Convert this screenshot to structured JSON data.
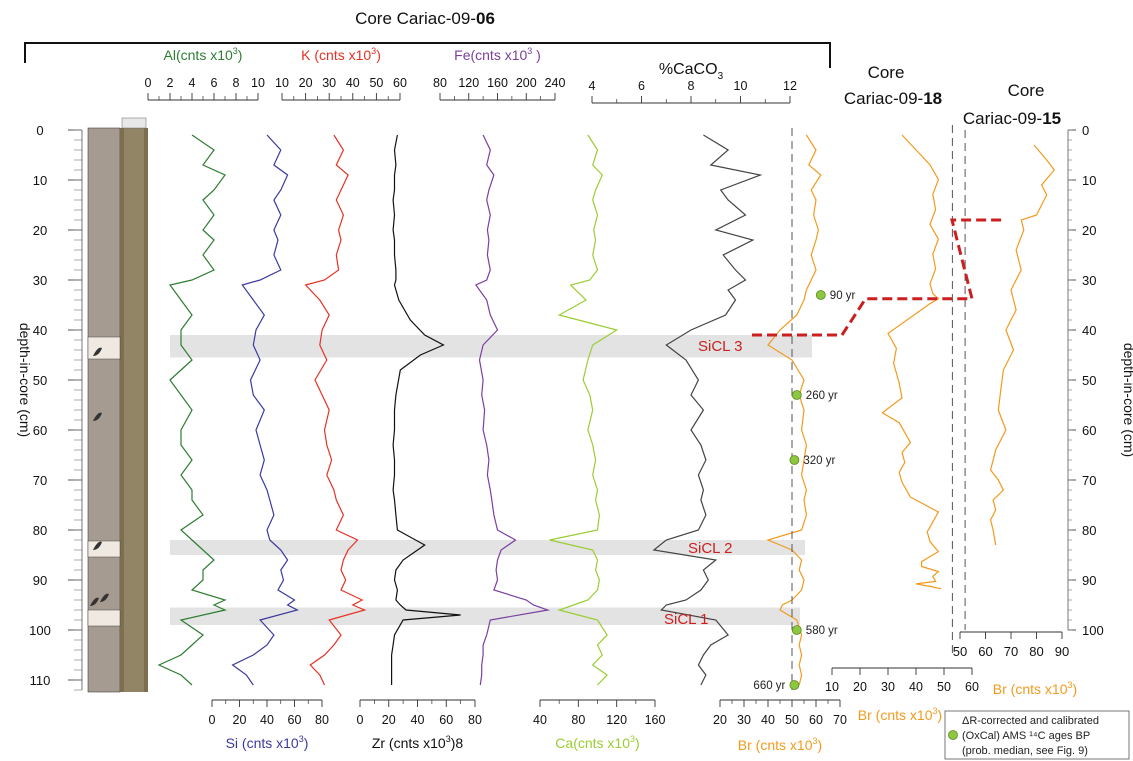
{
  "figure": {
    "title_prefix": "Core Cariac-09-",
    "title_num": "06",
    "core18_line1": "Core",
    "core18_prefix": "Cariac-09-",
    "core18_num": "18",
    "core15_line1": "Core",
    "core15_prefix": "Cariac-09-",
    "core15_num": "15",
    "depth_label": "depth-in-core (cm)",
    "legend_lines": [
      "ΔR-corrected and calibrated",
      "(OxCal) AMS ¹⁴C ages BP",
      "(prob. median, see Fig. 9)"
    ],
    "colors": {
      "al": "#2e7d32",
      "si": "#3a3a9e",
      "k": "#e53224",
      "zr": "#111111",
      "fe": "#7b3fa0",
      "ca": "#9acd32",
      "caco3": "#444444",
      "br": "#f39a1e",
      "event": "#cc1f1f",
      "band": "#d9d9d9",
      "date_marker": "#8dc63f"
    }
  },
  "chart_data": [
    {
      "type": "line",
      "core": "Cariac-09-06",
      "y": {
        "label": "depth-in-core (cm)",
        "range": [
          0,
          110
        ],
        "ticks": [
          0,
          10,
          20,
          30,
          40,
          50,
          60,
          70,
          80,
          90,
          100,
          110
        ]
      },
      "panels": [
        {
          "id": "al",
          "axis": "top",
          "label_main": "Al(cnts x10",
          "label_sup": "3",
          "label_end": ")",
          "ticks": [
            "0",
            "2",
            "4",
            "6",
            "8",
            "10"
          ],
          "range": [
            0,
            10
          ],
          "x": [
            4,
            6,
            5,
            7,
            6,
            5,
            6,
            5,
            6,
            5,
            6,
            4,
            2,
            3,
            4,
            3,
            3,
            4,
            2,
            3,
            4,
            3,
            3,
            4,
            3,
            4,
            4,
            5,
            3,
            4,
            5,
            6,
            5,
            5,
            4,
            7,
            6,
            7,
            3,
            5,
            4,
            3,
            1,
            3,
            4
          ],
          "depth": [
            1,
            4,
            7,
            9,
            12,
            14,
            17,
            20,
            22,
            25,
            28,
            30,
            31,
            34,
            37,
            40,
            43,
            46,
            50,
            53,
            56,
            60,
            63,
            66,
            69,
            72,
            74,
            77,
            80,
            82,
            84,
            86,
            88,
            90,
            92,
            94,
            95,
            96,
            98,
            101,
            103,
            105,
            107,
            109,
            111
          ]
        },
        {
          "id": "si",
          "axis": "bottom",
          "label_main": "Si (cnts x10",
          "label_sup": "3",
          "label_end": ")",
          "ticks": [
            "0",
            "20",
            "40",
            "60",
            "80"
          ],
          "range": [
            0,
            80
          ],
          "x": [
            40,
            50,
            45,
            55,
            50,
            45,
            50,
            45,
            48,
            45,
            50,
            35,
            22,
            30,
            38,
            32,
            30,
            35,
            28,
            30,
            38,
            32,
            35,
            38,
            35,
            40,
            42,
            45,
            40,
            42,
            50,
            55,
            50,
            52,
            48,
            60,
            55,
            62,
            35,
            45,
            40,
            30,
            15,
            25,
            30
          ],
          "depth": [
            1,
            4,
            7,
            9,
            12,
            14,
            17,
            20,
            22,
            25,
            28,
            30,
            31,
            34,
            37,
            40,
            43,
            46,
            50,
            53,
            56,
            60,
            63,
            66,
            69,
            72,
            74,
            77,
            80,
            82,
            84,
            86,
            88,
            90,
            92,
            94,
            95,
            96,
            98,
            101,
            103,
            105,
            107,
            109,
            111
          ]
        },
        {
          "id": "k",
          "axis": "top",
          "label_main": "K (cnts x10",
          "label_sup": "3",
          "label_end": ")",
          "ticks": [
            "10",
            "20",
            "30",
            "40",
            "50",
            "60"
          ],
          "range": [
            10,
            60
          ],
          "x": [
            32,
            36,
            33,
            38,
            35,
            33,
            36,
            34,
            35,
            33,
            34,
            28,
            20,
            26,
            30,
            27,
            26,
            29,
            24,
            27,
            30,
            28,
            29,
            31,
            29,
            32,
            33,
            36,
            33,
            42,
            38,
            36,
            35,
            37,
            35,
            44,
            40,
            45,
            30,
            35,
            32,
            28,
            22,
            26,
            28
          ],
          "depth": [
            1,
            4,
            7,
            9,
            12,
            14,
            17,
            20,
            22,
            25,
            28,
            30,
            31,
            34,
            37,
            40,
            43,
            46,
            50,
            53,
            56,
            60,
            63,
            66,
            69,
            72,
            74,
            77,
            80,
            82,
            84,
            86,
            88,
            90,
            92,
            94,
            95,
            96,
            98,
            101,
            103,
            105,
            107,
            109,
            111
          ]
        },
        {
          "id": "zr",
          "axis": "bottom",
          "label_main": "Zr (cnts x10",
          "label_sup": "3",
          "label_end": ")8",
          "ticks": [
            "0",
            "20",
            "40",
            "60",
            "80"
          ],
          "range": [
            0,
            80
          ],
          "x": [
            26,
            24,
            25,
            24,
            24,
            23,
            24,
            23,
            24,
            24,
            25,
            25,
            24,
            27,
            35,
            45,
            58,
            42,
            28,
            25,
            24,
            24,
            23,
            24,
            24,
            23,
            24,
            25,
            26,
            45,
            30,
            25,
            24,
            26,
            25,
            28,
            32,
            70,
            30,
            24,
            23,
            22,
            22,
            22,
            22
          ],
          "depth": [
            1,
            4,
            7,
            9,
            12,
            14,
            17,
            20,
            22,
            25,
            28,
            30,
            31,
            34,
            38,
            41,
            43,
            45,
            48,
            53,
            56,
            60,
            63,
            66,
            69,
            72,
            74,
            77,
            80,
            83,
            86,
            88,
            90,
            92,
            94,
            95,
            96,
            97,
            98,
            101,
            103,
            105,
            107,
            109,
            111
          ]
        },
        {
          "id": "fe",
          "axis": "top",
          "label_main": "Fe(cnts x10",
          "label_sup": "3",
          "label_end": " )",
          "ticks": [
            "80",
            "120",
            "160",
            "200",
            "240"
          ],
          "range": [
            80,
            240
          ],
          "x": [
            140,
            150,
            145,
            155,
            148,
            145,
            150,
            146,
            148,
            146,
            150,
            145,
            130,
            145,
            150,
            160,
            140,
            135,
            140,
            138,
            142,
            140,
            145,
            148,
            146,
            150,
            152,
            155,
            160,
            185,
            165,
            160,
            158,
            160,
            155,
            200,
            210,
            230,
            150,
            145,
            140,
            140,
            138,
            138,
            136
          ],
          "depth": [
            1,
            4,
            7,
            9,
            12,
            14,
            17,
            20,
            22,
            25,
            28,
            30,
            31,
            34,
            37,
            40,
            43,
            46,
            50,
            53,
            56,
            60,
            63,
            66,
            69,
            72,
            74,
            77,
            80,
            82,
            84,
            86,
            88,
            90,
            92,
            94,
            95,
            96,
            98,
            101,
            103,
            105,
            107,
            109,
            111
          ]
        },
        {
          "id": "ca",
          "axis": "bottom",
          "label_main": "Ca(cnts x10",
          "label_sup": "3",
          "label_end": ")",
          "ticks": [
            "40",
            "80",
            "120",
            "160"
          ],
          "range": [
            40,
            160
          ],
          "x": [
            90,
            100,
            95,
            105,
            98,
            95,
            100,
            96,
            98,
            95,
            100,
            92,
            72,
            88,
            60,
            120,
            95,
            90,
            85,
            92,
            95,
            90,
            95,
            98,
            95,
            100,
            98,
            102,
            100,
            50,
            95,
            100,
            98,
            102,
            100,
            90,
            75,
            60,
            100,
            110,
            100,
            105,
            95,
            110,
            100
          ],
          "depth": [
            1,
            4,
            7,
            9,
            12,
            14,
            17,
            20,
            22,
            25,
            28,
            30,
            31,
            34,
            37,
            40,
            43,
            46,
            50,
            53,
            56,
            60,
            63,
            66,
            69,
            72,
            74,
            77,
            80,
            82,
            84,
            86,
            88,
            90,
            92,
            94,
            95,
            96,
            98,
            101,
            103,
            105,
            107,
            109,
            111
          ]
        },
        {
          "id": "caco3",
          "axis": "top",
          "label_main": "%CaCO",
          "label_sub": "3",
          "ticks": [
            "4",
            "6",
            "8",
            "10",
            "12"
          ],
          "range": [
            4,
            12
          ],
          "x": [
            8.5,
            9.5,
            8.8,
            10.8,
            9.2,
            9.5,
            10.2,
            9.0,
            10.5,
            9.3,
            9.8,
            10.2,
            9.5,
            9.8,
            9.4,
            8.0,
            7.0,
            7.8,
            8.3,
            8.0,
            8.5,
            8.0,
            8.4,
            8.6,
            8.3,
            8.5,
            8.4,
            8.6,
            8.3,
            7.0,
            6.5,
            9.0,
            8.5,
            8.7,
            8.4,
            7.8,
            7.0,
            6.8,
            9.0,
            9.5,
            8.8,
            8.5,
            8.3,
            8.6,
            8.4
          ],
          "depth": [
            1,
            4,
            7,
            9,
            12,
            14,
            17,
            20,
            22,
            25,
            28,
            30,
            32,
            34,
            37,
            40,
            43,
            46,
            50,
            53,
            56,
            60,
            63,
            66,
            69,
            72,
            74,
            77,
            80,
            82,
            84,
            86,
            88,
            90,
            92,
            94,
            95,
            96,
            98,
            101,
            103,
            105,
            107,
            109,
            111
          ]
        },
        {
          "id": "br06",
          "axis": "bottom",
          "label_main": "Br (cnts x10",
          "label_sup": "3",
          "label_end": ")",
          "ticks": [
            "20",
            "30",
            "40",
            "50",
            "60",
            "70"
          ],
          "range": [
            20,
            70
          ],
          "x": [
            56,
            60,
            57,
            62,
            58,
            60,
            59,
            61,
            60,
            58,
            60,
            58,
            56,
            55,
            52,
            45,
            40,
            50,
            55,
            53,
            55,
            54,
            56,
            55,
            54,
            56,
            55,
            56,
            54,
            40,
            50,
            54,
            53,
            55,
            54,
            50,
            46,
            45,
            52,
            54,
            53,
            54,
            53,
            54,
            53
          ],
          "depth": [
            1,
            4,
            7,
            9,
            12,
            14,
            17,
            20,
            22,
            25,
            28,
            30,
            32,
            34,
            37,
            40,
            43,
            46,
            50,
            53,
            56,
            60,
            63,
            66,
            69,
            72,
            74,
            77,
            80,
            82,
            84,
            86,
            88,
            90,
            92,
            94,
            95,
            96,
            98,
            101,
            103,
            105,
            107,
            109,
            111
          ]
        }
      ],
      "layers": [
        {
          "name": "SiCL 3",
          "depth_range": [
            41,
            45.5
          ]
        },
        {
          "name": "SiCL 2",
          "depth_range": [
            82,
            85
          ]
        },
        {
          "name": "SiCL 1",
          "depth_range": [
            95.5,
            99
          ]
        }
      ],
      "ages": [
        {
          "label": "90 yr",
          "depth": 33,
          "br": 62
        },
        {
          "label": "260 yr",
          "depth": 53,
          "br": 52
        },
        {
          "label": "320 yr",
          "depth": 66,
          "br": 51
        },
        {
          "label": "580 yr",
          "depth": 100,
          "br": 52
        },
        {
          "label": "660 yr",
          "depth": 111,
          "br": 51
        }
      ],
      "event_depth": 41,
      "reference_line_br": 50
    },
    {
      "type": "line",
      "core": "Cariac-09-18",
      "x_axis": {
        "label_main": "Br (cnts x10",
        "label_sup": "3",
        "label_end": ")",
        "ticks": [
          "10",
          "20",
          "30",
          "40",
          "50",
          "60"
        ],
        "range": [
          10,
          60
        ]
      },
      "x": [
        35,
        40,
        45,
        48,
        46,
        47,
        45,
        48,
        46,
        47,
        45,
        46,
        48,
        45,
        40,
        30,
        33,
        32,
        34,
        35,
        28,
        34,
        36,
        38,
        35,
        36,
        34,
        35,
        38,
        48,
        47,
        46,
        44,
        45,
        48,
        45,
        42,
        42,
        48,
        46,
        47,
        40,
        45,
        49
      ],
      "depth": [
        0,
        3,
        6,
        9,
        12,
        15,
        18,
        21,
        24,
        27,
        30,
        32,
        33,
        34,
        36,
        40,
        43,
        46,
        50,
        53,
        56,
        58,
        60,
        62,
        64,
        66,
        68,
        70,
        73,
        76,
        77,
        78,
        80,
        82,
        84,
        85,
        86,
        87,
        88,
        89,
        90,
        90.5,
        91,
        91.5
      ],
      "event_depth": 33,
      "reference_line_br": 53
    },
    {
      "type": "line",
      "core": "Cariac-09-15",
      "x_axis": {
        "label_main": "Br (cnts x10",
        "label_sup": "3",
        "label_end": ")",
        "ticks": [
          "50",
          "60",
          "70",
          "80",
          "90"
        ],
        "range": [
          50,
          90
        ],
        "y_ticks": [
          "0",
          "10",
          "20",
          "30",
          "40",
          "50",
          "60",
          "70",
          "80",
          "90",
          "100"
        ]
      },
      "x": [
        79,
        84,
        87,
        82,
        84,
        82,
        80,
        74,
        75,
        72,
        74,
        70,
        72,
        68,
        71,
        67,
        66,
        65,
        68,
        64,
        62,
        65,
        67,
        63,
        64,
        62,
        63,
        64
      ],
      "depth": [
        3,
        6,
        8,
        11,
        13,
        15,
        17,
        18,
        20,
        24,
        28,
        32,
        36,
        40,
        44,
        48,
        52,
        56,
        60,
        64,
        68,
        70,
        72,
        74,
        76,
        78,
        80,
        83
      ],
      "event_depth": 18,
      "reference_line_br": 52
    }
  ]
}
